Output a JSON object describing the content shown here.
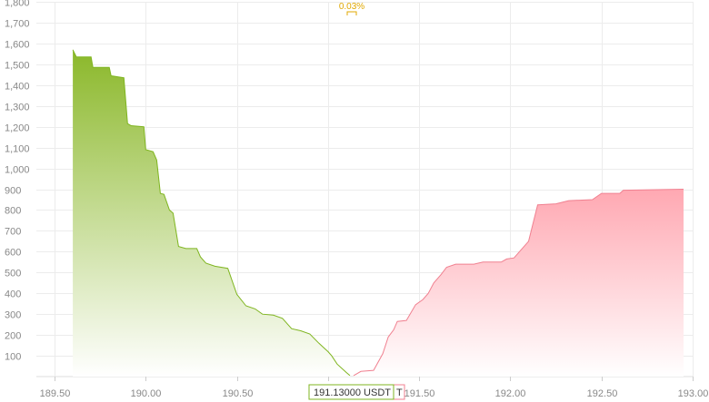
{
  "chart_data": {
    "type": "area",
    "mid_price_label": "0.03%",
    "price_label": "191.13000 USDT",
    "xlim": [
      189.4,
      193.0
    ],
    "ylim": [
      0,
      1800
    ],
    "x_ticks": [
      {
        "v": 189.5,
        "label": "189.50"
      },
      {
        "v": 190.0,
        "label": "190.00"
      },
      {
        "v": 190.5,
        "label": "190.50"
      },
      {
        "v": 191.0,
        "label": "191.00"
      },
      {
        "v": 191.5,
        "label": "191.50"
      },
      {
        "v": 192.0,
        "label": "192.00"
      },
      {
        "v": 192.5,
        "label": "192.50"
      },
      {
        "v": 193.0,
        "label": "193.00"
      }
    ],
    "y_ticks": [
      {
        "v": 100,
        "label": "100"
      },
      {
        "v": 200,
        "label": "200"
      },
      {
        "v": 300,
        "label": "300"
      },
      {
        "v": 400,
        "label": "400"
      },
      {
        "v": 500,
        "label": "500"
      },
      {
        "v": 600,
        "label": "600"
      },
      {
        "v": 700,
        "label": "700"
      },
      {
        "v": 800,
        "label": "800"
      },
      {
        "v": 900,
        "label": "900"
      },
      {
        "v": 1000,
        "label": "1,000"
      },
      {
        "v": 1100,
        "label": "1,100"
      },
      {
        "v": 1200,
        "label": "1,200"
      },
      {
        "v": 1300,
        "label": "1,300"
      },
      {
        "v": 1400,
        "label": "1,400"
      },
      {
        "v": 1500,
        "label": "1,500"
      },
      {
        "v": 1600,
        "label": "1,600"
      },
      {
        "v": 1700,
        "label": "1,700"
      },
      {
        "v": 1800,
        "label": "1,800"
      }
    ],
    "colors": {
      "bid_line": "#7fb520",
      "bid_fill_top": "#8bb82a",
      "ask_line": "#f08090",
      "ask_fill_top": "#ffa8b2",
      "grid": "#ececec",
      "mid_label": "#e0a800"
    },
    "series": [
      {
        "side": "bid",
        "points": [
          [
            189.6,
            1570
          ],
          [
            189.62,
            1535
          ],
          [
            189.7,
            1535
          ],
          [
            189.71,
            1485
          ],
          [
            189.8,
            1485
          ],
          [
            189.81,
            1445
          ],
          [
            189.88,
            1435
          ],
          [
            189.9,
            1215
          ],
          [
            189.92,
            1205
          ],
          [
            189.99,
            1200
          ],
          [
            190.0,
            1090
          ],
          [
            190.04,
            1080
          ],
          [
            190.06,
            1040
          ],
          [
            190.08,
            880
          ],
          [
            190.1,
            875
          ],
          [
            190.13,
            800
          ],
          [
            190.15,
            785
          ],
          [
            190.18,
            625
          ],
          [
            190.22,
            615
          ],
          [
            190.28,
            615
          ],
          [
            190.3,
            575
          ],
          [
            190.33,
            545
          ],
          [
            190.38,
            530
          ],
          [
            190.45,
            520
          ],
          [
            190.5,
            395
          ],
          [
            190.55,
            340
          ],
          [
            190.6,
            325
          ],
          [
            190.64,
            300
          ],
          [
            190.7,
            295
          ],
          [
            190.75,
            280
          ],
          [
            190.8,
            230
          ],
          [
            190.85,
            220
          ],
          [
            190.9,
            205
          ],
          [
            190.95,
            160
          ],
          [
            191.0,
            120
          ],
          [
            191.02,
            100
          ],
          [
            191.05,
            60
          ],
          [
            191.1,
            20
          ],
          [
            191.12,
            5
          ]
        ]
      },
      {
        "side": "ask",
        "points": [
          [
            191.14,
            5
          ],
          [
            191.18,
            25
          ],
          [
            191.25,
            30
          ],
          [
            191.3,
            110
          ],
          [
            191.33,
            190
          ],
          [
            191.36,
            225
          ],
          [
            191.38,
            265
          ],
          [
            191.43,
            270
          ],
          [
            191.45,
            300
          ],
          [
            191.48,
            345
          ],
          [
            191.52,
            370
          ],
          [
            191.55,
            400
          ],
          [
            191.58,
            450
          ],
          [
            191.62,
            490
          ],
          [
            191.65,
            525
          ],
          [
            191.7,
            540
          ],
          [
            191.8,
            540
          ],
          [
            191.85,
            550
          ],
          [
            191.95,
            550
          ],
          [
            191.98,
            565
          ],
          [
            192.02,
            570
          ],
          [
            192.05,
            600
          ],
          [
            192.1,
            650
          ],
          [
            192.15,
            825
          ],
          [
            192.25,
            830
          ],
          [
            192.32,
            845
          ],
          [
            192.45,
            850
          ],
          [
            192.5,
            880
          ],
          [
            192.6,
            880
          ],
          [
            192.62,
            895
          ],
          [
            192.95,
            900
          ]
        ]
      }
    ]
  }
}
